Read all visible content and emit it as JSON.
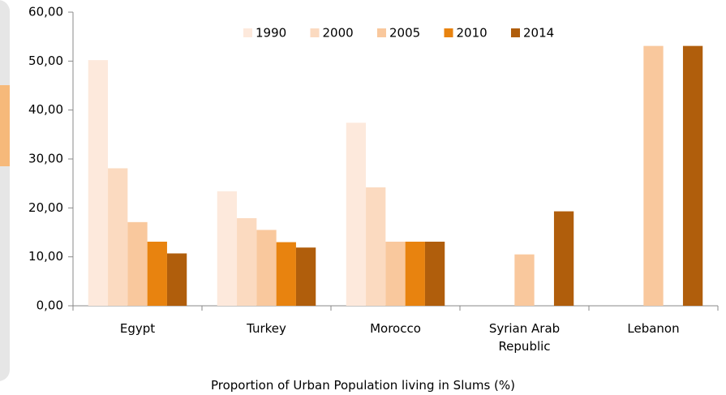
{
  "chart_data": {
    "type": "bar",
    "x_label": "Proportion of Urban Population living in Slums (%)",
    "categories": [
      "Egypt",
      "Turkey",
      "Morocco",
      "Syrian Arab Republic",
      "Lebanon"
    ],
    "series": [
      {
        "name": "1990",
        "color": "#fde9dc",
        "values": [
          50.2,
          23.4,
          37.4,
          null,
          null
        ]
      },
      {
        "name": "2000",
        "color": "#fbdac0",
        "values": [
          28.1,
          17.9,
          24.2,
          null,
          null
        ]
      },
      {
        "name": "2005",
        "color": "#f9c89d",
        "values": [
          17.1,
          15.5,
          13.1,
          10.5,
          53.1
        ]
      },
      {
        "name": "2010",
        "color": "#e8830f",
        "values": [
          13.1,
          13.0,
          13.1,
          null,
          null
        ]
      },
      {
        "name": "2014",
        "color": "#b05e0c",
        "values": [
          10.7,
          11.9,
          13.1,
          19.3,
          53.1
        ]
      }
    ],
    "ylim": [
      0,
      60
    ],
    "yticks": [
      {
        "value": 0,
        "label": "0,00"
      },
      {
        "value": 10,
        "label": "10,00"
      },
      {
        "value": 20,
        "label": "20,00"
      },
      {
        "value": 30,
        "label": "30,00"
      },
      {
        "value": 40,
        "label": "40,00"
      },
      {
        "value": 50,
        "label": "50,00"
      },
      {
        "value": 60,
        "label": "60,00"
      }
    ],
    "legend": "top"
  }
}
